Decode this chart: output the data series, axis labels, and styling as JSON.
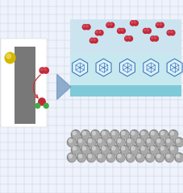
{
  "bg_color": "#eef2fa",
  "grid_color": "#c8d0e8",
  "gray_sphere_color": "#8a8a8a",
  "gray_sphere_mid": "#aaaaaa",
  "gray_sphere_highlight": "#d0d0d0",
  "cyan_layer_color": "#7ecad8",
  "hex_layer_color": "#c8e8f0",
  "upper_bg_color": "#cce4f0",
  "red_sphere_color": "#c0283a",
  "red_sphere_light": "#e05060",
  "green_sphere_color": "#44aa44",
  "yellow_sphere_color": "#d4b800",
  "yellow_sphere_light": "#eedc60",
  "hexagon_edge": "#3a78b8",
  "hexagon_fill": "#ddf0fa",
  "gray_panel_color": "#787878",
  "gray_panel_light": "#aaaaaa",
  "arrow_blue": "#7098c0",
  "arrow_red": "#cc3333",
  "white": "#ffffff"
}
